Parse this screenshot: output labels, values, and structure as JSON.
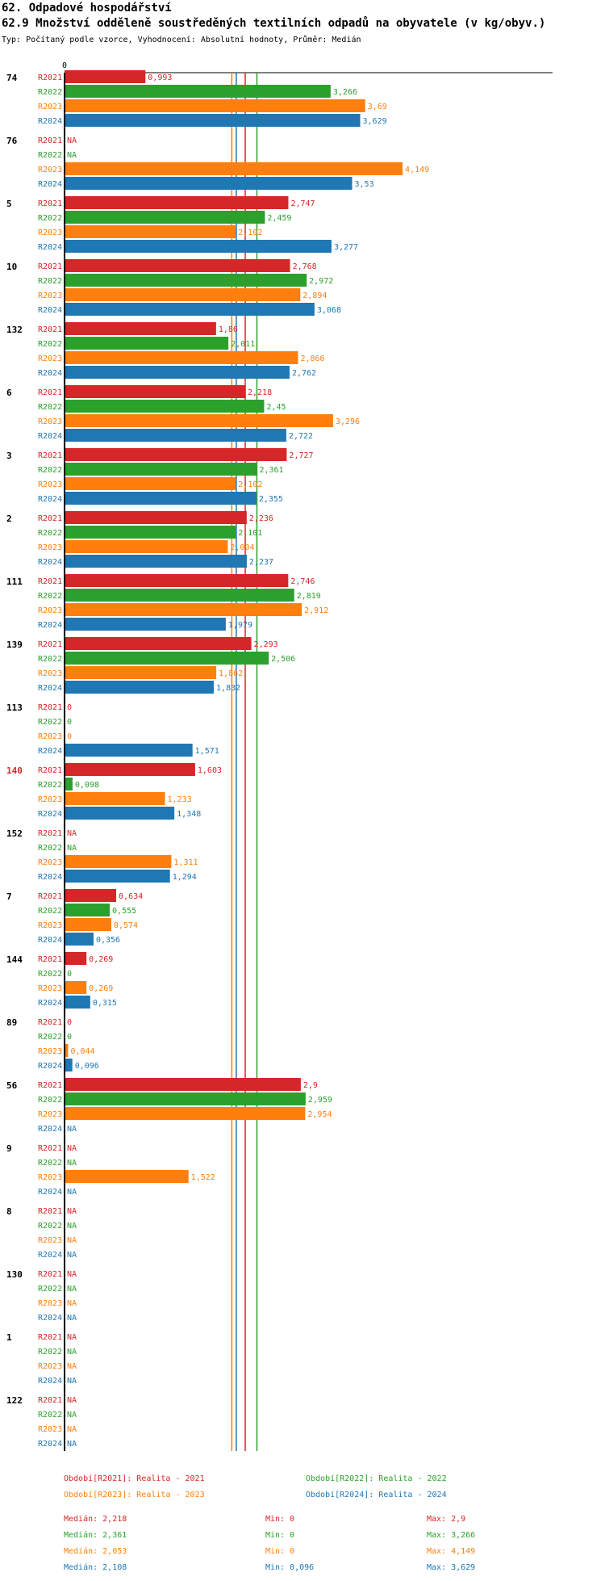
{
  "header": {
    "title": "62. Odpadové hospodářství",
    "subtitle": "62.9 Množství odděleně soustředěných textilních odpadů na obyvatele (v kg/obyv.)",
    "type_line": "Typ: Počítaný podle vzorce, Vyhodnocení: Absolutní hodnoty, Průměr: Medián"
  },
  "colors": {
    "R2021": "#d62728",
    "R2022": "#2ca02c",
    "R2023": "#ff7f0e",
    "R2024": "#1f77b4"
  },
  "chart_data": {
    "type": "bar",
    "orientation": "horizontal",
    "axis_zero_label": "0",
    "xlim": [
      0,
      4.5
    ],
    "series_names": [
      "R2021",
      "R2022",
      "R2023",
      "R2024"
    ],
    "groups": [
      {
        "id": "74",
        "highlight": false,
        "values": [
          {
            "series": "R2021",
            "value": 0.993,
            "label": "0,993"
          },
          {
            "series": "R2022",
            "value": 3.266,
            "label": "3,266"
          },
          {
            "series": "R2023",
            "value": 3.69,
            "label": "3,69"
          },
          {
            "series": "R2024",
            "value": 3.629,
            "label": "3,629"
          }
        ]
      },
      {
        "id": "76",
        "highlight": false,
        "values": [
          {
            "series": "R2021",
            "value": null,
            "label": "NA"
          },
          {
            "series": "R2022",
            "value": null,
            "label": "NA"
          },
          {
            "series": "R2023",
            "value": 4.149,
            "label": "4,149"
          },
          {
            "series": "R2024",
            "value": 3.53,
            "label": "3,53"
          }
        ]
      },
      {
        "id": "5",
        "highlight": false,
        "values": [
          {
            "series": "R2021",
            "value": 2.747,
            "label": "2,747"
          },
          {
            "series": "R2022",
            "value": 2.459,
            "label": "2,459"
          },
          {
            "series": "R2023",
            "value": 2.102,
            "label": "2,102"
          },
          {
            "series": "R2024",
            "value": 3.277,
            "label": "3,277"
          }
        ]
      },
      {
        "id": "10",
        "highlight": false,
        "values": [
          {
            "series": "R2021",
            "value": 2.768,
            "label": "2,768"
          },
          {
            "series": "R2022",
            "value": 2.972,
            "label": "2,972"
          },
          {
            "series": "R2023",
            "value": 2.894,
            "label": "2,894"
          },
          {
            "series": "R2024",
            "value": 3.068,
            "label": "3,068"
          }
        ]
      },
      {
        "id": "132",
        "highlight": false,
        "values": [
          {
            "series": "R2021",
            "value": 1.86,
            "label": "1,86"
          },
          {
            "series": "R2022",
            "value": 2.011,
            "label": "2,011"
          },
          {
            "series": "R2023",
            "value": 2.866,
            "label": "2,866"
          },
          {
            "series": "R2024",
            "value": 2.762,
            "label": "2,762"
          }
        ]
      },
      {
        "id": "6",
        "highlight": false,
        "values": [
          {
            "series": "R2021",
            "value": 2.218,
            "label": "2,218"
          },
          {
            "series": "R2022",
            "value": 2.45,
            "label": "2,45"
          },
          {
            "series": "R2023",
            "value": 3.296,
            "label": "3,296"
          },
          {
            "series": "R2024",
            "value": 2.722,
            "label": "2,722"
          }
        ]
      },
      {
        "id": "3",
        "highlight": false,
        "values": [
          {
            "series": "R2021",
            "value": 2.727,
            "label": "2,727"
          },
          {
            "series": "R2022",
            "value": 2.361,
            "label": "2,361"
          },
          {
            "series": "R2023",
            "value": 2.102,
            "label": "2,102"
          },
          {
            "series": "R2024",
            "value": 2.355,
            "label": "2,355"
          }
        ]
      },
      {
        "id": "2",
        "highlight": false,
        "values": [
          {
            "series": "R2021",
            "value": 2.236,
            "label": "2,236"
          },
          {
            "series": "R2022",
            "value": 2.101,
            "label": "2,101"
          },
          {
            "series": "R2023",
            "value": 2.004,
            "label": "2,004"
          },
          {
            "series": "R2024",
            "value": 2.237,
            "label": "2,237"
          }
        ]
      },
      {
        "id": "111",
        "highlight": false,
        "values": [
          {
            "series": "R2021",
            "value": 2.746,
            "label": "2,746"
          },
          {
            "series": "R2022",
            "value": 2.819,
            "label": "2,819"
          },
          {
            "series": "R2023",
            "value": 2.912,
            "label": "2,912"
          },
          {
            "series": "R2024",
            "value": 1.979,
            "label": "1,979"
          }
        ]
      },
      {
        "id": "139",
        "highlight": false,
        "values": [
          {
            "series": "R2021",
            "value": 2.293,
            "label": "2,293"
          },
          {
            "series": "R2022",
            "value": 2.506,
            "label": "2,506"
          },
          {
            "series": "R2023",
            "value": 1.862,
            "label": "1,862"
          },
          {
            "series": "R2024",
            "value": 1.832,
            "label": "1,832"
          }
        ]
      },
      {
        "id": "113",
        "highlight": false,
        "values": [
          {
            "series": "R2021",
            "value": 0,
            "label": "0"
          },
          {
            "series": "R2022",
            "value": 0,
            "label": "0"
          },
          {
            "series": "R2023",
            "value": 0,
            "label": "0"
          },
          {
            "series": "R2024",
            "value": 1.571,
            "label": "1,571"
          }
        ]
      },
      {
        "id": "140",
        "highlight": true,
        "values": [
          {
            "series": "R2021",
            "value": 1.603,
            "label": "1,603"
          },
          {
            "series": "R2022",
            "value": 0.098,
            "label": "0,098"
          },
          {
            "series": "R2023",
            "value": 1.233,
            "label": "1,233"
          },
          {
            "series": "R2024",
            "value": 1.348,
            "label": "1,348"
          }
        ]
      },
      {
        "id": "152",
        "highlight": false,
        "values": [
          {
            "series": "R2021",
            "value": null,
            "label": "NA"
          },
          {
            "series": "R2022",
            "value": null,
            "label": "NA"
          },
          {
            "series": "R2023",
            "value": 1.311,
            "label": "1,311"
          },
          {
            "series": "R2024",
            "value": 1.294,
            "label": "1,294"
          }
        ]
      },
      {
        "id": "7",
        "highlight": false,
        "values": [
          {
            "series": "R2021",
            "value": 0.634,
            "label": "0,634"
          },
          {
            "series": "R2022",
            "value": 0.555,
            "label": "0,555"
          },
          {
            "series": "R2023",
            "value": 0.574,
            "label": "0,574"
          },
          {
            "series": "R2024",
            "value": 0.356,
            "label": "0,356"
          }
        ]
      },
      {
        "id": "144",
        "highlight": false,
        "values": [
          {
            "series": "R2021",
            "value": 0.269,
            "label": "0,269"
          },
          {
            "series": "R2022",
            "value": 0,
            "label": "0"
          },
          {
            "series": "R2023",
            "value": 0.269,
            "label": "0,269"
          },
          {
            "series": "R2024",
            "value": 0.315,
            "label": "0,315"
          }
        ]
      },
      {
        "id": "89",
        "highlight": false,
        "values": [
          {
            "series": "R2021",
            "value": 0,
            "label": "0"
          },
          {
            "series": "R2022",
            "value": 0,
            "label": "0"
          },
          {
            "series": "R2023",
            "value": 0.044,
            "label": "0,044"
          },
          {
            "series": "R2024",
            "value": 0.096,
            "label": "0,096"
          }
        ]
      },
      {
        "id": "56",
        "highlight": false,
        "values": [
          {
            "series": "R2021",
            "value": 2.9,
            "label": "2,9"
          },
          {
            "series": "R2022",
            "value": 2.959,
            "label": "2,959"
          },
          {
            "series": "R2023",
            "value": 2.954,
            "label": "2,954"
          },
          {
            "series": "R2024",
            "value": null,
            "label": "NA"
          }
        ]
      },
      {
        "id": "9",
        "highlight": false,
        "values": [
          {
            "series": "R2021",
            "value": null,
            "label": "NA"
          },
          {
            "series": "R2022",
            "value": null,
            "label": "NA"
          },
          {
            "series": "R2023",
            "value": 1.522,
            "label": "1,522"
          },
          {
            "series": "R2024",
            "value": null,
            "label": "NA"
          }
        ]
      },
      {
        "id": "8",
        "highlight": false,
        "values": [
          {
            "series": "R2021",
            "value": null,
            "label": "NA"
          },
          {
            "series": "R2022",
            "value": null,
            "label": "NA"
          },
          {
            "series": "R2023",
            "value": null,
            "label": "NA"
          },
          {
            "series": "R2024",
            "value": null,
            "label": "NA"
          }
        ]
      },
      {
        "id": "130",
        "highlight": false,
        "values": [
          {
            "series": "R2021",
            "value": null,
            "label": "NA"
          },
          {
            "series": "R2022",
            "value": null,
            "label": "NA"
          },
          {
            "series": "R2023",
            "value": null,
            "label": "NA"
          },
          {
            "series": "R2024",
            "value": null,
            "label": "NA"
          }
        ]
      },
      {
        "id": "1",
        "highlight": false,
        "values": [
          {
            "series": "R2021",
            "value": null,
            "label": "NA"
          },
          {
            "series": "R2022",
            "value": null,
            "label": "NA"
          },
          {
            "series": "R2023",
            "value": null,
            "label": "NA"
          },
          {
            "series": "R2024",
            "value": null,
            "label": "NA"
          }
        ]
      },
      {
        "id": "122",
        "highlight": false,
        "values": [
          {
            "series": "R2021",
            "value": null,
            "label": "NA"
          },
          {
            "series": "R2022",
            "value": null,
            "label": "NA"
          },
          {
            "series": "R2023",
            "value": null,
            "label": "NA"
          },
          {
            "series": "R2024",
            "value": null,
            "label": "NA"
          }
        ]
      }
    ],
    "median_lines": [
      {
        "series": "R2021",
        "value": 2.218
      },
      {
        "series": "R2022",
        "value": 2.361
      },
      {
        "series": "R2023",
        "value": 2.053
      },
      {
        "series": "R2024",
        "value": 2.108
      }
    ]
  },
  "legend": {
    "r2021": "Období[R2021]: Realita - 2021",
    "r2022": "Období[R2022]: Realita - 2022",
    "r2023": "Období[R2023]: Realita - 2023",
    "r2024": "Období[R2024]: Realita - 2024"
  },
  "stats": {
    "r2021": {
      "median": "Medián: 2,218",
      "min": "Min: 0",
      "max": "Max: 2,9"
    },
    "r2022": {
      "median": "Medián: 2,361",
      "min": "Min: 0",
      "max": "Max: 3,266"
    },
    "r2023": {
      "median": "Medián: 2,053",
      "min": "Min: 0",
      "max": "Max: 4,149"
    },
    "r2024": {
      "median": "Medián: 2,108",
      "min": "Min: 0,096",
      "max": "Max: 3,629"
    }
  }
}
